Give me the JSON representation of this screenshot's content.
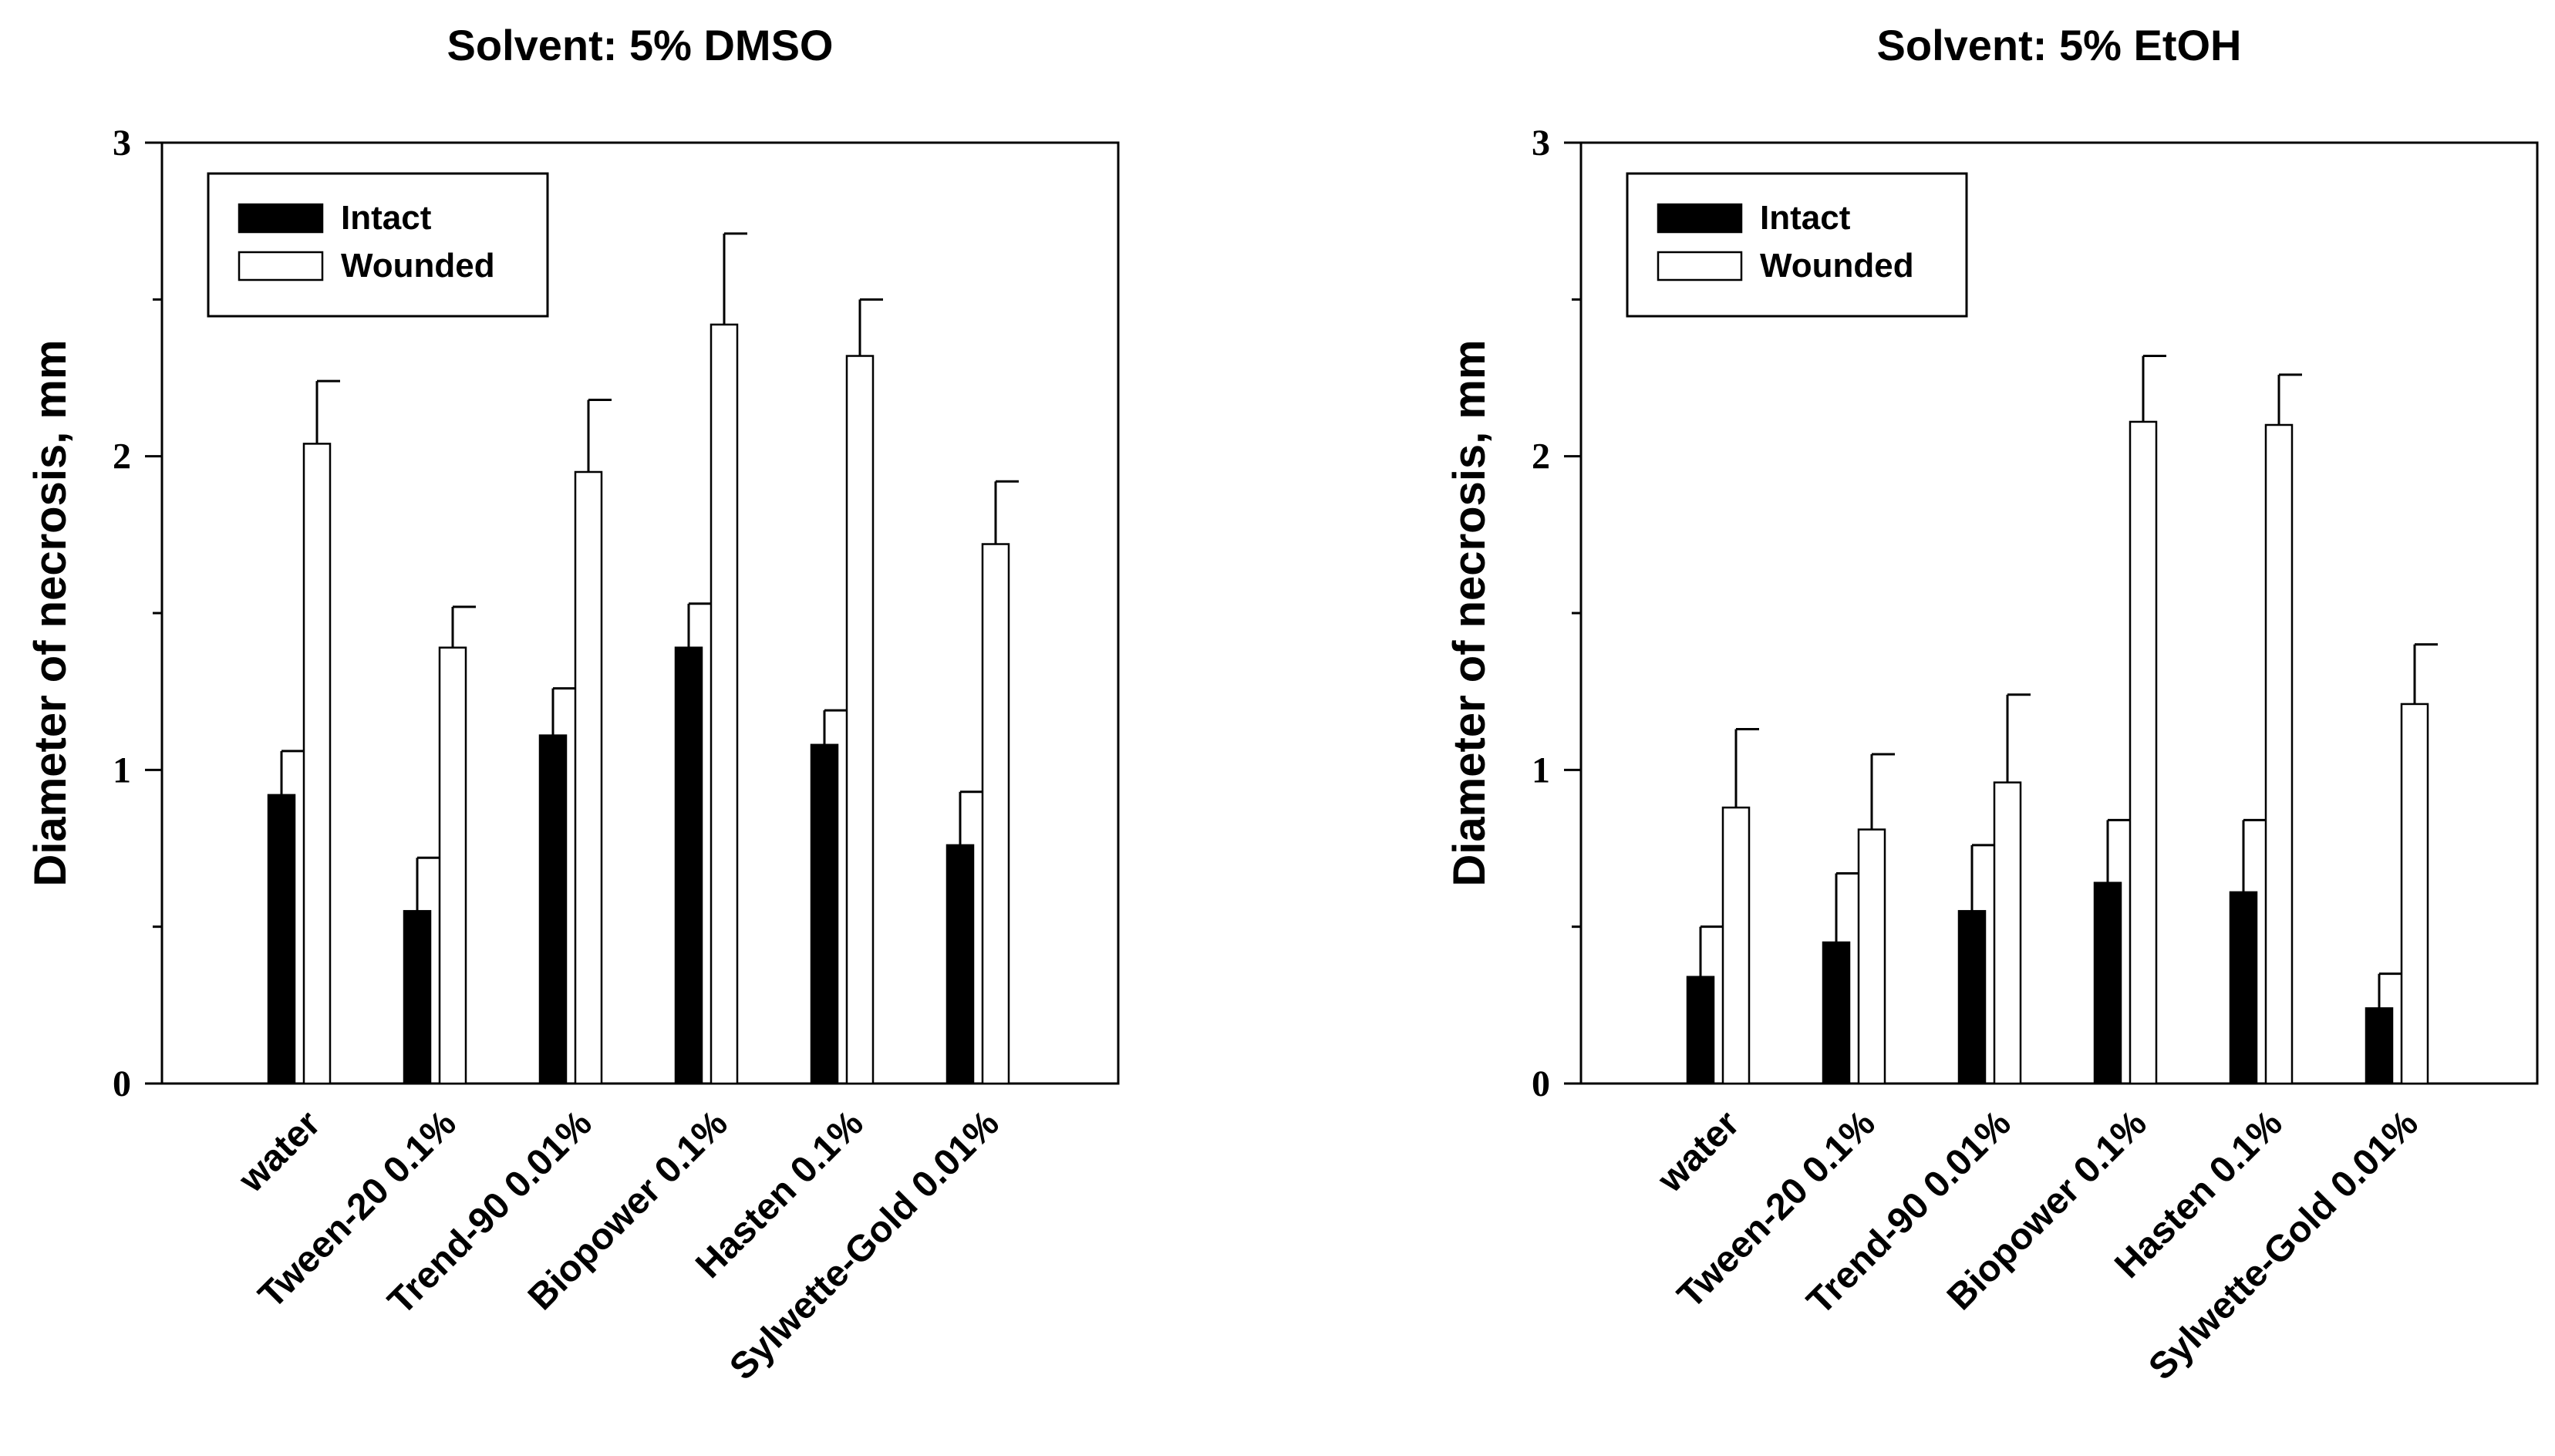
{
  "chart_data": [
    {
      "type": "bar",
      "title": "Solvent: 5% DMSO",
      "xlabel": "",
      "ylabel": "Diameter of necrosis, mm",
      "ylim": [
        0,
        3
      ],
      "yticks": [
        "0",
        "1",
        "2",
        "3"
      ],
      "categories": [
        "water",
        "Tween-20 0.1%",
        "Trend-90 0.01%",
        "Biopower 0.1%",
        "Hasten 0.1%",
        "Sylwette-Gold 0.01%"
      ],
      "legend": [
        "Intact",
        "Wounded"
      ],
      "legend_position": "top-left",
      "series": [
        {
          "name": "Intact",
          "color": "#000000",
          "values": [
            0.92,
            0.55,
            1.11,
            1.39,
            1.08,
            0.76
          ],
          "errors": [
            0.14,
            0.17,
            0.15,
            0.14,
            0.11,
            0.17
          ]
        },
        {
          "name": "Wounded",
          "color": "#ffffff",
          "values": [
            2.04,
            1.39,
            1.95,
            2.42,
            2.32,
            1.72
          ],
          "errors": [
            0.2,
            0.13,
            0.23,
            0.29,
            0.18,
            0.2
          ]
        }
      ]
    },
    {
      "type": "bar",
      "title": "Solvent: 5% EtOH",
      "xlabel": "",
      "ylabel": "Diameter of necrosis, mm",
      "ylim": [
        0,
        3
      ],
      "yticks": [
        "0",
        "1",
        "2",
        "3"
      ],
      "categories": [
        "water",
        "Tween-20 0.1%",
        "Trend-90 0.01%",
        "Biopower 0.1%",
        "Hasten 0.1%",
        "Sylwette-Gold 0.01%"
      ],
      "legend": [
        "Intact",
        "Wounded"
      ],
      "legend_position": "top-left",
      "series": [
        {
          "name": "Intact",
          "color": "#000000",
          "values": [
            0.34,
            0.45,
            0.55,
            0.64,
            0.61,
            0.24
          ],
          "errors": [
            0.16,
            0.22,
            0.21,
            0.2,
            0.23,
            0.11
          ]
        },
        {
          "name": "Wounded",
          "color": "#ffffff",
          "values": [
            0.88,
            0.81,
            0.96,
            2.11,
            2.1,
            1.21
          ],
          "errors": [
            0.25,
            0.24,
            0.28,
            0.21,
            0.16,
            0.19
          ]
        }
      ]
    }
  ]
}
